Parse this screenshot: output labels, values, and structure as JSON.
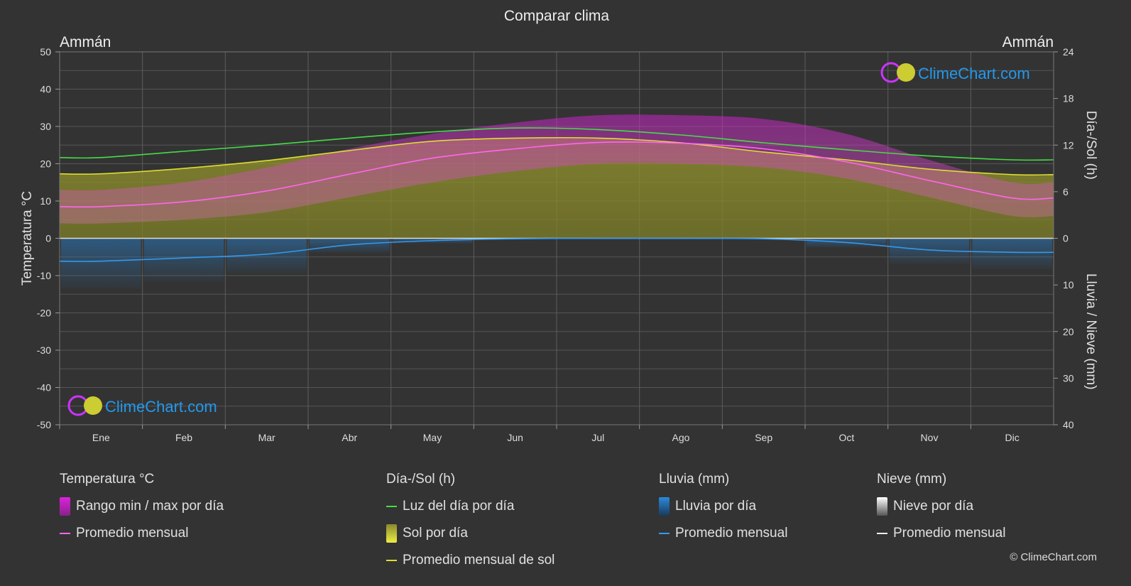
{
  "title": "Comparar clima",
  "city_left": "Ammán",
  "city_right": "Ammán",
  "watermark": "ClimeChart.com",
  "copyright": "© ClimeChart.com",
  "chart_data": {
    "type": "line",
    "categories": [
      "Ene",
      "Feb",
      "Mar",
      "Abr",
      "May",
      "Jun",
      "Jul",
      "Ago",
      "Sep",
      "Oct",
      "Nov",
      "Dic"
    ],
    "left_axis": {
      "label": "Temperatura °C",
      "ylim": [
        -50,
        50
      ],
      "ticks": [
        50,
        40,
        30,
        20,
        10,
        0,
        -10,
        -20,
        -30,
        -40,
        -50
      ]
    },
    "right_axis_top": {
      "label": "Día-/Sol (h)",
      "ylim": [
        0,
        24
      ],
      "ticks": [
        24,
        18,
        12,
        6,
        0
      ]
    },
    "right_axis_bottom": {
      "label": "Lluvia / Nieve (mm)",
      "ylim": [
        0,
        40
      ],
      "ticks": [
        0,
        10,
        20,
        30,
        40
      ]
    },
    "grid": true,
    "series": [
      {
        "name": "Luz del día por día",
        "axis": "hours",
        "color": "#44dd44",
        "values": [
          10.4,
          11.2,
          12.0,
          12.9,
          13.7,
          14.2,
          14.0,
          13.3,
          12.3,
          11.4,
          10.6,
          10.1
        ]
      },
      {
        "name": "Promedio mensual de sol",
        "axis": "hours",
        "color": "#dddd33",
        "values": [
          8.3,
          9.0,
          10.0,
          11.3,
          12.5,
          12.9,
          12.9,
          12.3,
          11.1,
          10.1,
          8.9,
          8.2
        ]
      },
      {
        "name": "Promedio mensual",
        "group": "Temperatura °C",
        "axis": "temp",
        "color": "#ff66ee",
        "values": [
          8.5,
          9.8,
          12.7,
          17.2,
          21.5,
          24.0,
          25.7,
          25.5,
          24.0,
          20.5,
          15.5,
          10.8
        ]
      },
      {
        "name": "Rango min / max por día",
        "group": "Temperatura °C",
        "axis": "temp",
        "color": "#cc33cc",
        "min": [
          4,
          5,
          7,
          11,
          15,
          18,
          20,
          20,
          19,
          16,
          11,
          6
        ],
        "max": [
          13,
          15,
          19,
          24,
          28,
          31,
          33,
          33,
          32,
          28,
          21,
          15
        ]
      },
      {
        "name": "Promedio mensual",
        "group": "Lluvia (mm)",
        "axis": "precip",
        "color": "#3399ee",
        "values": [
          4.9,
          4.2,
          3.4,
          1.4,
          0.5,
          0.1,
          0.0,
          0.0,
          0.1,
          0.9,
          2.5,
          3.0
        ]
      },
      {
        "name": "Promedio mensual",
        "group": "Nieve (mm)",
        "axis": "precip",
        "color": "#eeeeee",
        "values": [
          0.1,
          0.1,
          0.0,
          0.0,
          0.0,
          0.0,
          0.0,
          0.0,
          0.0,
          0.0,
          0.0,
          0.1
        ]
      }
    ]
  },
  "legend": {
    "temp": {
      "title": "Temperatura °C",
      "items": [
        "Rango min / max por día",
        "Promedio mensual"
      ]
    },
    "sun": {
      "title": "Día-/Sol (h)",
      "items": [
        "Luz del día por día",
        "Sol por día",
        "Promedio mensual de sol"
      ]
    },
    "rain": {
      "title": "Lluvia (mm)",
      "items": [
        "Lluvia por día",
        "Promedio mensual"
      ]
    },
    "snow": {
      "title": "Nieve (mm)",
      "items": [
        "Nieve por día",
        "Promedio mensual"
      ]
    }
  },
  "colors": {
    "background": "#333333",
    "daylight": "#44dd44",
    "sun_fill": "#a8a830",
    "sun_avg": "#dddd33",
    "temp_range": "#cc33cc",
    "temp_avg": "#ff66ee",
    "rain": "#2a7abf",
    "rain_avg": "#3399ee",
    "snow_avg": "#eeeeee",
    "watermark": "#2299ee"
  }
}
